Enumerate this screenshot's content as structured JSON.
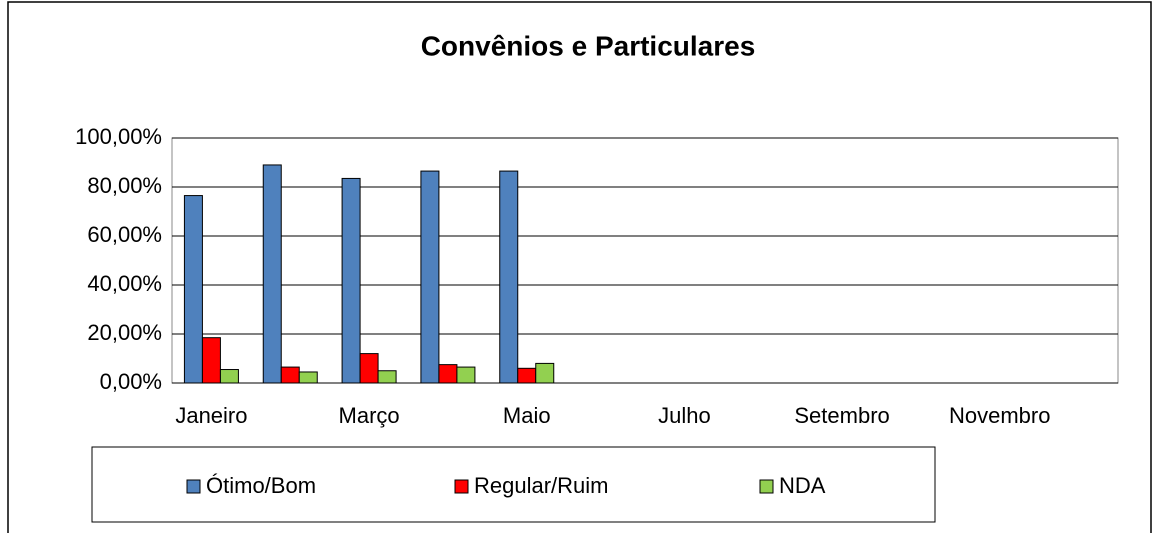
{
  "chart_data": {
    "type": "bar",
    "title": "Convênios e Particulares",
    "categories": [
      "Janeiro",
      null,
      "Março",
      null,
      "Maio",
      null,
      "Julho",
      null,
      "Setembro",
      null,
      "Novembro",
      null
    ],
    "series": [
      {
        "name": "Ótimo/Bom",
        "color": "#4f81bd",
        "values": [
          76.5,
          89,
          83.5,
          86.5,
          86.5,
          null,
          null,
          null,
          null,
          null,
          null,
          null
        ]
      },
      {
        "name": "Regular/Ruim",
        "color": "#ff0000",
        "values": [
          18.5,
          6.5,
          12,
          7.5,
          6,
          null,
          null,
          null,
          null,
          null,
          null,
          null
        ]
      },
      {
        "name": "NDA",
        "color": "#92d050",
        "values": [
          5.5,
          4.5,
          5,
          6.5,
          8,
          null,
          null,
          null,
          null,
          null,
          null,
          null
        ]
      }
    ],
    "ylim": [
      0,
      100
    ],
    "yticks": [
      {
        "value": 0,
        "label": "0,00%"
      },
      {
        "value": 20,
        "label": "20,00%"
      },
      {
        "value": 40,
        "label": "40,00%"
      },
      {
        "value": 60,
        "label": "60,00%"
      },
      {
        "value": 80,
        "label": "80,00%"
      },
      {
        "value": 100,
        "label": "100,00%"
      }
    ],
    "grid": true,
    "legend": "bottom"
  }
}
